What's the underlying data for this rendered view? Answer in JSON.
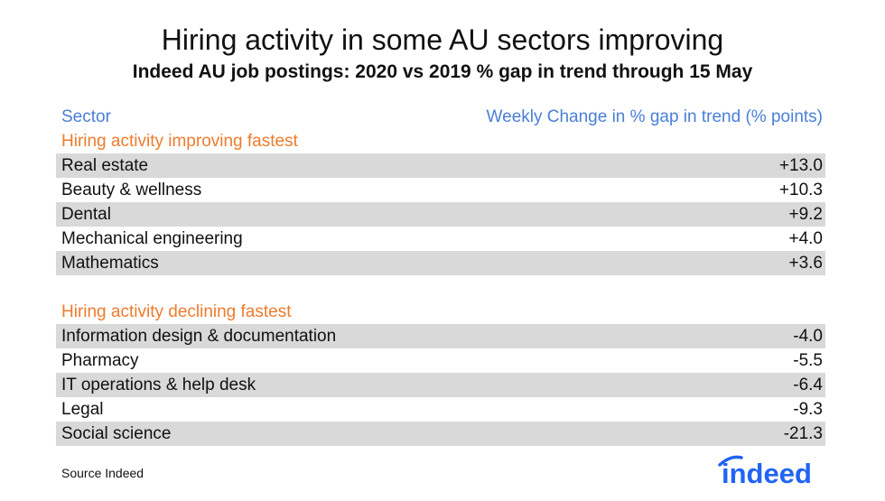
{
  "title": "Hiring activity in some AU sectors improving",
  "subtitle": "Indeed AU job postings: 2020 vs 2019 % gap in trend through 15 May",
  "chart_data": {
    "type": "table",
    "columns": [
      "Sector",
      "Weekly Change in % gap in trend (% points)"
    ],
    "groups": [
      {
        "name": "Hiring activity improving fastest",
        "rows": [
          {
            "sector": "Real estate",
            "value": "+13.0"
          },
          {
            "sector": "Beauty & wellness",
            "value": "+10.3"
          },
          {
            "sector": "Dental",
            "value": "+9.2"
          },
          {
            "sector": "Mechanical engineering",
            "value": "+4.0"
          },
          {
            "sector": "Mathematics",
            "value": "+3.6"
          }
        ]
      },
      {
        "name": "Hiring activity declining fastest",
        "rows": [
          {
            "sector": "Information design & documentation",
            "value": "-4.0"
          },
          {
            "sector": "Pharmacy",
            "value": "-5.5"
          },
          {
            "sector": "IT operations & help desk",
            "value": "-6.4"
          },
          {
            "sector": "Legal",
            "value": "-9.3"
          },
          {
            "sector": "Social science",
            "value": "-21.3"
          }
        ]
      }
    ]
  },
  "source": "Source Indeed",
  "logo_text": "indeed",
  "colors": {
    "header": "#4a7fd6",
    "section": "#ee7b2c",
    "shade": "#d9d9d9",
    "logo": "#2164f3"
  }
}
